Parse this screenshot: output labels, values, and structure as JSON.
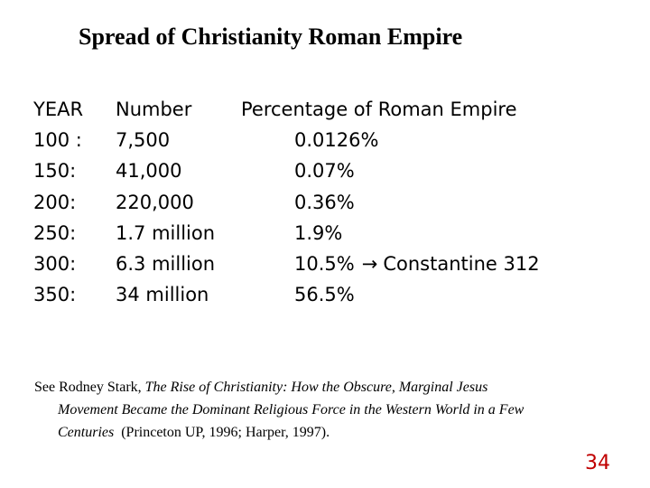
{
  "slide": {
    "title": "Spread of Christianity Roman Empire",
    "page_number": "34"
  },
  "table": {
    "headers": {
      "year": "YEAR",
      "number": "Number",
      "percentage": "Percentage of Roman Empire"
    },
    "rows": [
      {
        "year": "100 :",
        "number": "7,500",
        "percentage": "0.0126%"
      },
      {
        "year": "150:",
        "number": "41,000",
        "percentage": "0.07%"
      },
      {
        "year": "200:",
        "number": "220,000",
        "percentage": "0.36%"
      },
      {
        "year": "250:",
        "number": "1.7 million",
        "percentage": "1.9%"
      },
      {
        "year": "300:",
        "number": "6.3 million",
        "percentage": "10.5%",
        "arrow": "→",
        "annotation": "Constantine 312"
      },
      {
        "year": "350:",
        "number": "34 million",
        "percentage": "56.5%"
      }
    ]
  },
  "citation": {
    "prefix": "See Rodney Stark, ",
    "book_title_line1": "The Rise of Christianity: How the Obscure, Marginal Jesus",
    "book_title_line2": "Movement Became the Dominant Religious Force in the Western World in a Few",
    "book_title_line3": "Centuries",
    "suffix": "  (Princeton UP, 1996; Harper, 1997)."
  }
}
